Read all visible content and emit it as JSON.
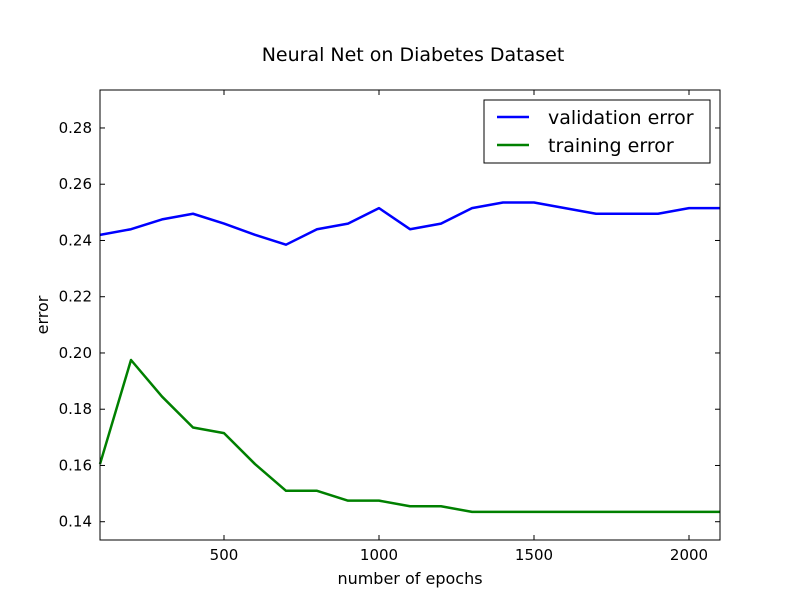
{
  "chart_data": {
    "type": "line",
    "title": "Neural Net on Diabetes Dataset",
    "xlabel": "number of epochs",
    "ylabel": "error",
    "xlim": [
      100,
      2100
    ],
    "ylim": [
      0.1335,
      0.2935
    ],
    "xticks": [
      500,
      1000,
      1500,
      2000
    ],
    "xtick_labels": [
      "500",
      "1000",
      "1500",
      "2000"
    ],
    "yticks": [
      0.14,
      0.16,
      0.18,
      0.2,
      0.22,
      0.24,
      0.26,
      0.28
    ],
    "ytick_labels": [
      "0.14",
      "0.16",
      "0.18",
      "0.20",
      "0.22",
      "0.24",
      "0.26",
      "0.28"
    ],
    "grid": false,
    "legend_position": "top-right",
    "x": [
      100,
      200,
      300,
      400,
      500,
      600,
      700,
      800,
      900,
      1000,
      1100,
      1200,
      1300,
      1400,
      1500,
      1600,
      1700,
      1800,
      1900,
      2000,
      2100
    ],
    "series": [
      {
        "name": "validation error",
        "color": "#0000ff",
        "values": [
          0.242,
          0.244,
          0.2475,
          0.2495,
          0.246,
          0.242,
          0.2385,
          0.244,
          0.246,
          0.2515,
          0.244,
          0.246,
          0.2515,
          0.2535,
          0.2535,
          0.2515,
          0.2495,
          0.2495,
          0.2495,
          0.2515,
          0.2515
        ]
      },
      {
        "name": "training error",
        "color": "#008000",
        "values": [
          0.1605,
          0.1975,
          0.1845,
          0.1735,
          0.1715,
          0.1605,
          0.151,
          0.151,
          0.1475,
          0.1475,
          0.1455,
          0.1455,
          0.1435,
          0.1435,
          0.1435,
          0.1435,
          0.1435,
          0.1435,
          0.1435,
          0.1435,
          0.1435
        ]
      }
    ]
  }
}
